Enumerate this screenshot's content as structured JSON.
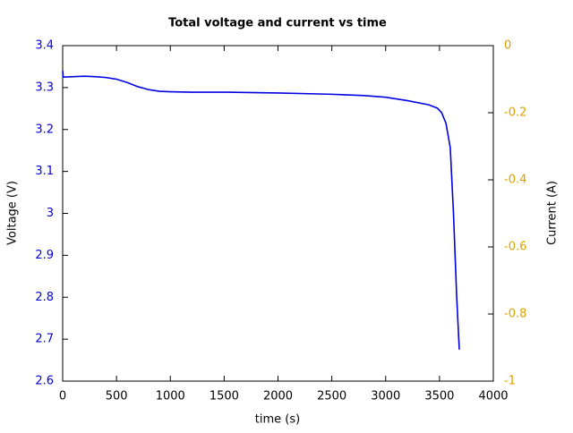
{
  "chart_data": {
    "type": "line",
    "title": "Total voltage and current vs time",
    "xlabel": "time (s)",
    "ylabel": "Voltage (V)",
    "y2label": "Current (A)",
    "x": [
      0,
      5,
      100,
      200,
      300,
      400,
      500,
      600,
      700,
      800,
      900,
      1000,
      1200,
      1500,
      2000,
      2500,
      2800,
      3000,
      3200,
      3400,
      3480,
      3520,
      3560,
      3600,
      3630,
      3660,
      3684
    ],
    "series": [
      {
        "color": "#0000e0",
        "values": [
          3.34,
          3.325,
          3.326,
          3.327,
          3.326,
          3.324,
          3.32,
          3.312,
          3.302,
          3.295,
          3.291,
          3.29,
          3.289,
          3.289,
          3.287,
          3.284,
          3.281,
          3.277,
          3.269,
          3.259,
          3.251,
          3.24,
          3.215,
          3.157,
          3.0,
          2.8,
          2.675
        ]
      }
    ],
    "xlim": [
      0,
      4000
    ],
    "xticks": [
      0,
      500,
      1000,
      1500,
      2000,
      2500,
      3000,
      3500,
      4000
    ],
    "ylim": [
      2.6,
      3.4
    ],
    "yticks": [
      2.6,
      2.7,
      2.8,
      2.9,
      3,
      3.1,
      3.2,
      3.3,
      3.4
    ],
    "ycolor": "#0000e0",
    "y2lim": [
      -1,
      0
    ],
    "y2ticks": [
      -1,
      -0.8,
      -0.6,
      -0.4,
      -0.2,
      0
    ],
    "y2color": "#e0a000"
  }
}
